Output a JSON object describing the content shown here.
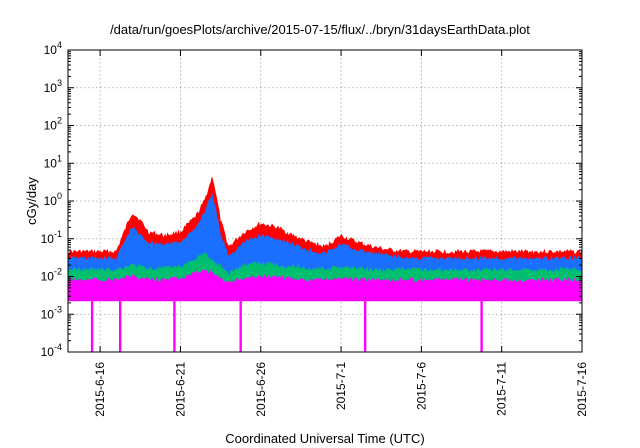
{
  "chart_data": {
    "type": "area",
    "title": "/data/run/goesPlots/archive/2015-07-15/flux/../bryn/31daysEarthData.plot",
    "xlabel": "Coordinated Universal Time (UTC)",
    "ylabel": "cGy/day",
    "yscale": "log",
    "ylim": [
      0.0001,
      10000
    ],
    "xlim": [
      "2015-06-14",
      "2015-07-16"
    ],
    "grid": true,
    "y_ticks": [
      {
        "value": 0.0001,
        "base": "10",
        "exp": "-4"
      },
      {
        "value": 0.001,
        "base": "10",
        "exp": "-3"
      },
      {
        "value": 0.01,
        "base": "10",
        "exp": "-2"
      },
      {
        "value": 0.1,
        "base": "10",
        "exp": "-1"
      },
      {
        "value": 1,
        "base": "10",
        "exp": "0"
      },
      {
        "value": 10,
        "base": "10",
        "exp": "1"
      },
      {
        "value": 100,
        "base": "10",
        "exp": "2"
      },
      {
        "value": 1000,
        "base": "10",
        "exp": "3"
      },
      {
        "value": 10000,
        "base": "10",
        "exp": "4"
      }
    ],
    "x_ticks": [
      {
        "date": "2015-06-16",
        "label": "2015-6-16"
      },
      {
        "date": "2015-06-21",
        "label": "2015-6-21"
      },
      {
        "date": "2015-06-26",
        "label": "2015-6-26"
      },
      {
        "date": "2015-07-01",
        "label": "2015-7-1"
      },
      {
        "date": "2015-07-06",
        "label": "2015-7-6"
      },
      {
        "date": "2015-07-11",
        "label": "2015-7-11"
      },
      {
        "date": "2015-07-16",
        "label": "2015-7-16"
      }
    ],
    "x": [
      "2015-06-14",
      "2015-06-15",
      "2015-06-16",
      "2015-06-17",
      "2015-06-18",
      "2015-06-18T12:00",
      "2015-06-19",
      "2015-06-20",
      "2015-06-21",
      "2015-06-22",
      "2015-06-22T12:00",
      "2015-06-23",
      "2015-06-23T12:00",
      "2015-06-24",
      "2015-06-25",
      "2015-06-26",
      "2015-06-27",
      "2015-06-28",
      "2015-06-29",
      "2015-06-30",
      "2015-07-01",
      "2015-07-02",
      "2015-07-03",
      "2015-07-04",
      "2015-07-05",
      "2015-07-06",
      "2015-07-07",
      "2015-07-08",
      "2015-07-09",
      "2015-07-10",
      "2015-07-11",
      "2015-07-12",
      "2015-07-13",
      "2015-07-14",
      "2015-07-15",
      "2015-07-16"
    ],
    "series": [
      {
        "color": "#ff0000",
        "values": [
          0.045,
          0.045,
          0.045,
          0.045,
          0.5,
          0.3,
          0.15,
          0.12,
          0.15,
          0.4,
          1.0,
          4.5,
          0.3,
          0.06,
          0.15,
          0.25,
          0.2,
          0.12,
          0.08,
          0.06,
          0.12,
          0.08,
          0.06,
          0.05,
          0.045,
          0.045,
          0.045,
          0.045,
          0.045,
          0.045,
          0.045,
          0.045,
          0.045,
          0.045,
          0.045,
          0.045
        ]
      },
      {
        "color": "#1a6fff",
        "values": [
          0.03,
          0.03,
          0.03,
          0.03,
          0.2,
          0.12,
          0.08,
          0.07,
          0.08,
          0.2,
          0.5,
          1.5,
          0.12,
          0.035,
          0.08,
          0.12,
          0.1,
          0.07,
          0.05,
          0.04,
          0.07,
          0.05,
          0.04,
          0.035,
          0.03,
          0.03,
          0.03,
          0.03,
          0.03,
          0.03,
          0.03,
          0.03,
          0.03,
          0.03,
          0.03,
          0.03
        ]
      },
      {
        "color": "#00c070",
        "values": [
          0.015,
          0.015,
          0.015,
          0.015,
          0.02,
          0.018,
          0.016,
          0.016,
          0.018,
          0.03,
          0.04,
          0.025,
          0.018,
          0.012,
          0.02,
          0.022,
          0.02,
          0.018,
          0.016,
          0.015,
          0.018,
          0.016,
          0.015,
          0.015,
          0.015,
          0.015,
          0.015,
          0.015,
          0.015,
          0.015,
          0.015,
          0.015,
          0.015,
          0.015,
          0.015,
          0.015
        ]
      },
      {
        "color": "#ff00ff",
        "values": [
          0.008,
          0.008,
          0.008,
          0.008,
          0.01,
          0.009,
          0.008,
          0.008,
          0.009,
          0.012,
          0.015,
          0.012,
          0.009,
          0.007,
          0.009,
          0.01,
          0.009,
          0.009,
          0.008,
          0.008,
          0.009,
          0.008,
          0.008,
          0.008,
          0.008,
          0.008,
          0.008,
          0.008,
          0.008,
          0.008,
          0.008,
          0.008,
          0.008,
          0.008,
          0.008,
          0.008
        ]
      }
    ],
    "floor_value": 0.0025,
    "dropouts": [
      "2015-06-15T12:00",
      "2015-06-17T06:00",
      "2015-06-20T15:00",
      "2015-06-24T18:00",
      "2015-07-02T12:00",
      "2015-07-09T18:00"
    ]
  }
}
